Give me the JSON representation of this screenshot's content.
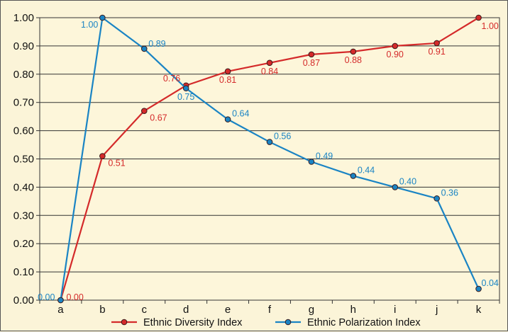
{
  "chart_data": {
    "type": "line",
    "title": "",
    "xlabel": "",
    "ylabel": "",
    "categories": [
      "a",
      "b",
      "c",
      "d",
      "e",
      "f",
      "g",
      "h",
      "i",
      "j",
      "k"
    ],
    "ylim": [
      0,
      1
    ],
    "yticks": [
      "0.00",
      "0.10",
      "0.20",
      "0.30",
      "0.40",
      "0.50",
      "0.60",
      "0.70",
      "0.80",
      "0.90",
      "1.00"
    ],
    "grid": true,
    "legend_position": "bottom",
    "series": [
      {
        "name": "Ethnic Diversity Index",
        "color": "#d42a2a",
        "values": [
          0.0,
          0.51,
          0.67,
          0.76,
          0.81,
          0.84,
          0.87,
          0.88,
          0.9,
          0.91,
          1.0
        ],
        "labels": [
          "0.00",
          "0.51",
          "0.67",
          "0.76",
          "0.81",
          "0.84",
          "0.87",
          "0.88",
          "0.90",
          "0.91",
          "1.00"
        ]
      },
      {
        "name": "Ethnic Polarization Index",
        "color": "#1a84c4",
        "values": [
          0.0,
          1.0,
          0.89,
          0.75,
          0.64,
          0.56,
          0.49,
          0.44,
          0.4,
          0.36,
          0.04
        ],
        "labels": [
          "0.00",
          "1.00",
          "0.89",
          "0.75",
          "0.64",
          "0.56",
          "0.49",
          "0.44",
          "0.40",
          "0.36",
          "0.04"
        ]
      }
    ]
  }
}
